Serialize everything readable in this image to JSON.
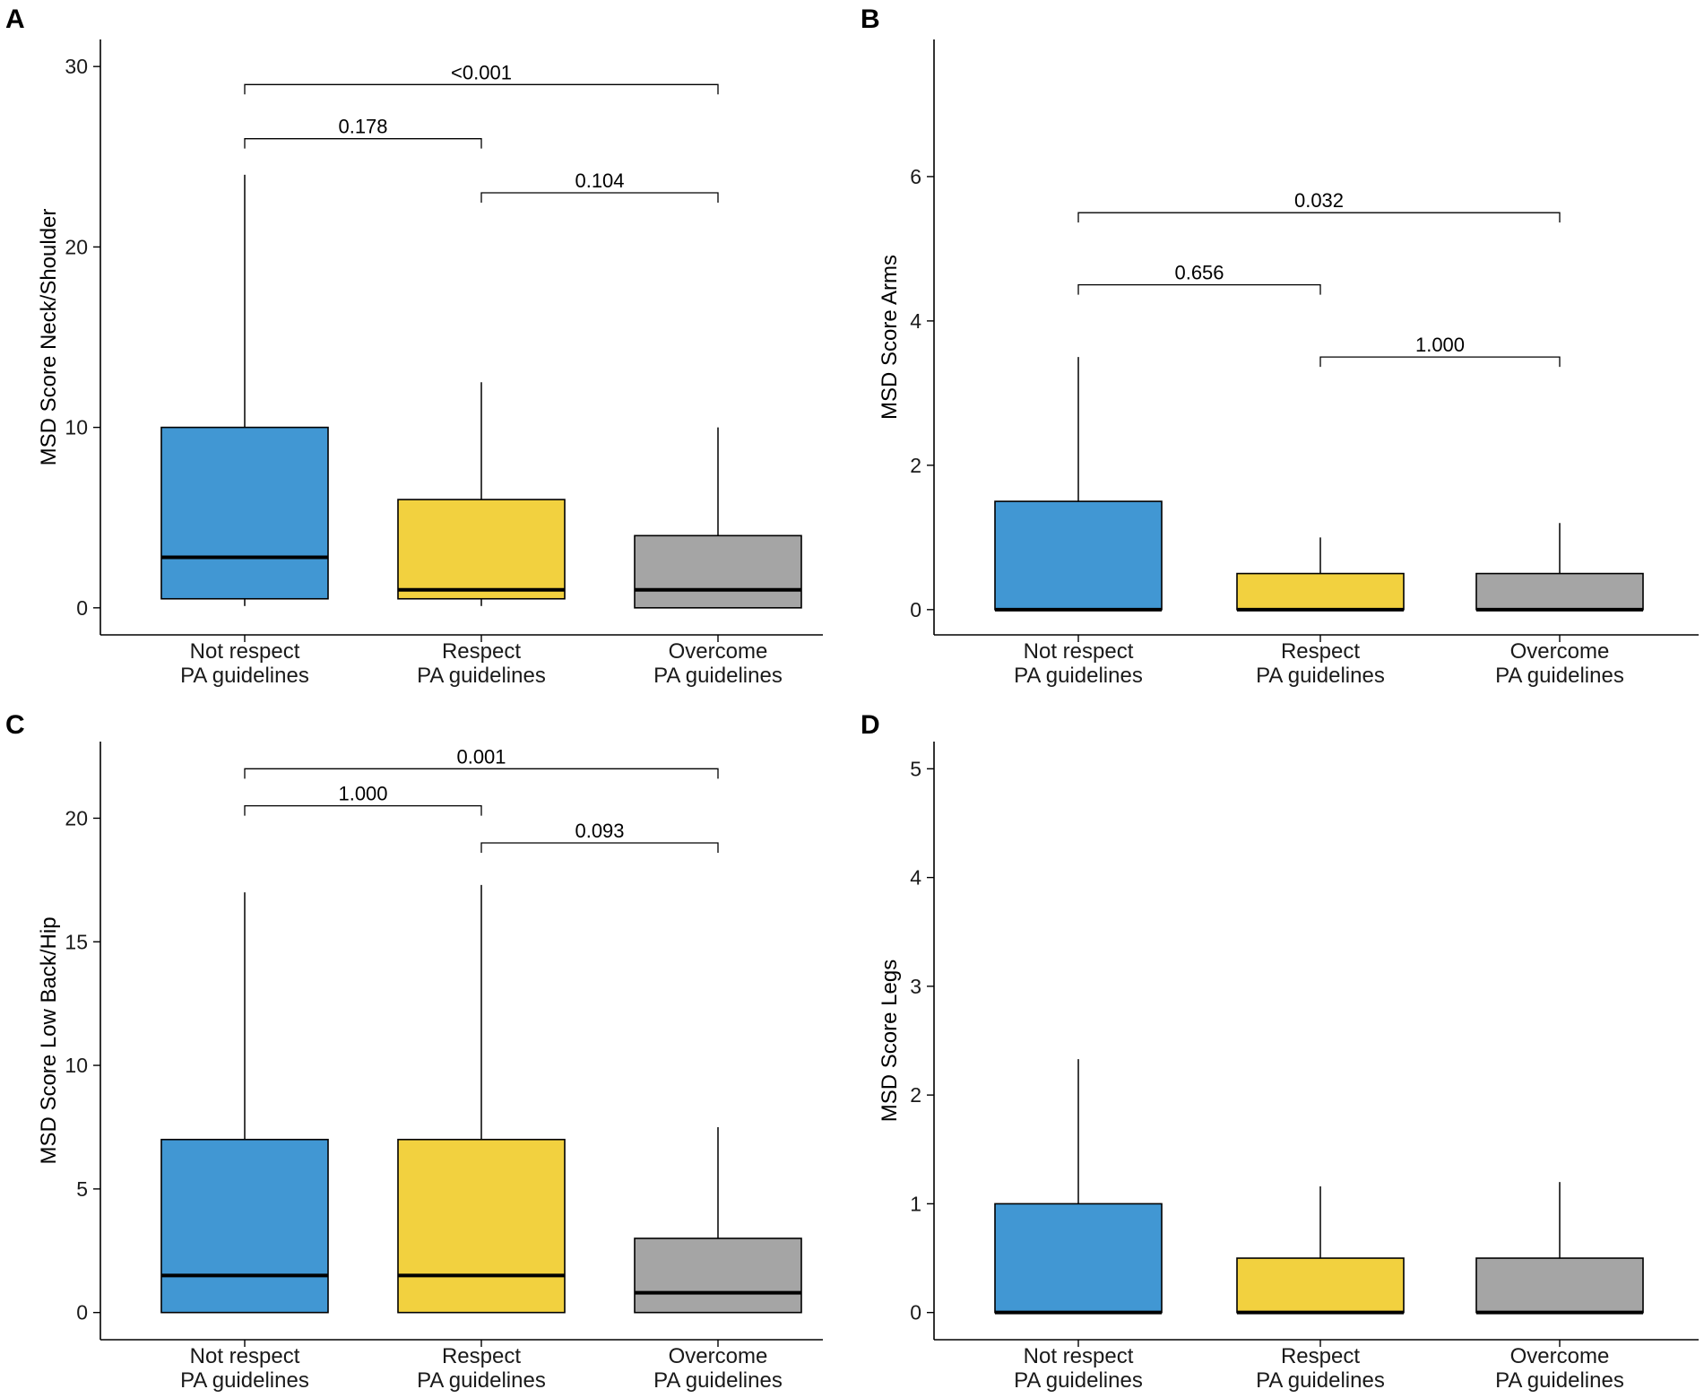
{
  "chart_data": [
    {
      "panel": "A",
      "type": "boxplot",
      "ylabel": "MSD Score Neck/Shoulder",
      "ylim": [
        -1.5,
        31.5
      ],
      "yticks": [
        0,
        10,
        20,
        30
      ],
      "categories": [
        {
          "line1": "Not respect",
          "line2": "PA guidelines"
        },
        {
          "line1": "Respect",
          "line2": "PA guidelines"
        },
        {
          "line1": "Overcome",
          "line2": "PA guidelines"
        }
      ],
      "colors": [
        "#4197d3",
        "#f2d13f",
        "#a5a5a5"
      ],
      "boxes": [
        {
          "whisker_low": 0.1,
          "q1": 0.5,
          "median": 2.8,
          "q3": 10,
          "whisker_high": 24
        },
        {
          "whisker_low": 0.1,
          "q1": 0.5,
          "median": 1.0,
          "q3": 6,
          "whisker_high": 12.5
        },
        {
          "whisker_low": 0,
          "q1": 0,
          "median": 1.0,
          "q3": 4,
          "whisker_high": 10
        }
      ],
      "comparisons": [
        {
          "from": 0,
          "to": 2,
          "y": 29,
          "label": "<0.001"
        },
        {
          "from": 0,
          "to": 1,
          "y": 26,
          "label": "0.178"
        },
        {
          "from": 1,
          "to": 2,
          "y": 23,
          "label": "0.104"
        }
      ]
    },
    {
      "panel": "B",
      "type": "boxplot",
      "ylabel": "MSD Score Arms",
      "ylim": [
        -0.35,
        7.9
      ],
      "yticks": [
        0,
        2,
        4,
        6
      ],
      "categories": [
        {
          "line1": "Not respect",
          "line2": "PA guidelines"
        },
        {
          "line1": "Respect",
          "line2": "PA guidelines"
        },
        {
          "line1": "Overcome",
          "line2": "PA guidelines"
        }
      ],
      "colors": [
        "#4197d3",
        "#f2d13f",
        "#a5a5a5"
      ],
      "boxes": [
        {
          "whisker_low": 0,
          "q1": 0,
          "median": 0,
          "q3": 1.5,
          "whisker_high": 3.5
        },
        {
          "whisker_low": 0,
          "q1": 0,
          "median": 0,
          "q3": 0.5,
          "whisker_high": 1.0
        },
        {
          "whisker_low": 0,
          "q1": 0,
          "median": 0,
          "q3": 0.5,
          "whisker_high": 1.2
        }
      ],
      "comparisons": [
        {
          "from": 0,
          "to": 2,
          "y": 5.5,
          "label": "0.032"
        },
        {
          "from": 0,
          "to": 1,
          "y": 4.5,
          "label": "0.656"
        },
        {
          "from": 1,
          "to": 2,
          "y": 3.5,
          "label": "1.000"
        }
      ]
    },
    {
      "panel": "C",
      "type": "boxplot",
      "ylabel": "MSD Score Low Back/Hip",
      "ylim": [
        -1.1,
        23.1
      ],
      "yticks": [
        0,
        5,
        10,
        15,
        20
      ],
      "categories": [
        {
          "line1": "Not respect",
          "line2": "PA guidelines"
        },
        {
          "line1": "Respect",
          "line2": "PA guidelines"
        },
        {
          "line1": "Overcome",
          "line2": "PA guidelines"
        }
      ],
      "colors": [
        "#4197d3",
        "#f2d13f",
        "#a5a5a5"
      ],
      "boxes": [
        {
          "whisker_low": 0,
          "q1": 0,
          "median": 1.5,
          "q3": 7,
          "whisker_high": 17
        },
        {
          "whisker_low": 0,
          "q1": 0,
          "median": 1.5,
          "q3": 7,
          "whisker_high": 17.3
        },
        {
          "whisker_low": 0,
          "q1": 0,
          "median": 0.8,
          "q3": 3,
          "whisker_high": 7.5
        }
      ],
      "comparisons": [
        {
          "from": 0,
          "to": 2,
          "y": 22,
          "label": "0.001"
        },
        {
          "from": 0,
          "to": 1,
          "y": 20.5,
          "label": "1.000"
        },
        {
          "from": 1,
          "to": 2,
          "y": 19,
          "label": "0.093"
        }
      ]
    },
    {
      "panel": "D",
      "type": "boxplot",
      "ylabel": "MSD Score Legs",
      "ylim": [
        -0.25,
        5.25
      ],
      "yticks": [
        0,
        1,
        2,
        3,
        4,
        5
      ],
      "categories": [
        {
          "line1": "Not respect",
          "line2": "PA guidelines"
        },
        {
          "line1": "Respect",
          "line2": "PA guidelines"
        },
        {
          "line1": "Overcome",
          "line2": "PA guidelines"
        }
      ],
      "colors": [
        "#4197d3",
        "#f2d13f",
        "#a5a5a5"
      ],
      "boxes": [
        {
          "whisker_low": 0,
          "q1": 0,
          "median": 0,
          "q3": 1.0,
          "whisker_high": 2.33
        },
        {
          "whisker_low": 0,
          "q1": 0,
          "median": 0,
          "q3": 0.5,
          "whisker_high": 1.16
        },
        {
          "whisker_low": 0,
          "q1": 0,
          "median": 0,
          "q3": 0.5,
          "whisker_high": 1.2
        }
      ],
      "comparisons": []
    }
  ]
}
